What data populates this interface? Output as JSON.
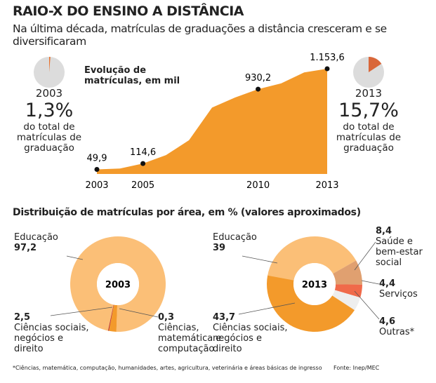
{
  "title": "RAIO-X DO ENSINO A DISTÂNCIA",
  "subtitle": "Na última década, matrículas de graduações a distância cresceram e se diversificaram",
  "section_title": "Distribuição de matrículas por área, em % (valores aproximados)",
  "footnote": "*Ciências, matemática, computação, humanidades, artes, agricultura, veterinária e áreas básicas de ingresso",
  "source": "Fonte: Inep/MEC",
  "chart_data": [
    {
      "type": "area",
      "title": "Evolução de matrículas, em mil",
      "color": "#f39a2b",
      "x": [
        2003,
        2004,
        2005,
        2006,
        2007,
        2008,
        2009,
        2010,
        2011,
        2012,
        2013
      ],
      "values": [
        49.9,
        59.6,
        114.6,
        207.2,
        369.8,
        727.9,
        838.1,
        930.2,
        992.9,
        1113.9,
        1153.6
      ],
      "value_labels": [
        "49,9",
        null,
        "114,6",
        null,
        null,
        null,
        null,
        "930,2",
        null,
        null,
        "1.153,6"
      ],
      "xlim": [
        2003,
        2013
      ],
      "xticks": [
        2003,
        2005,
        2010,
        2013
      ],
      "ylim": [
        0,
        1200
      ]
    },
    {
      "type": "pie",
      "label": "2003",
      "values": [
        1.3
      ],
      "value_labels": [
        "1,3%"
      ],
      "color": "#e8702a",
      "caption": "do total de matrículas de graduação"
    },
    {
      "type": "pie",
      "label": "2013",
      "values": [
        15.7
      ],
      "value_labels": [
        "15,7%"
      ],
      "color": "#d9673a",
      "caption": "do total de matrículas de graduação"
    },
    {
      "type": "donut",
      "center_label": "2003",
      "categories": [
        "Educação",
        "Ciências sociais, negócios e direito",
        "Ciências, matemática e computação"
      ],
      "values": [
        97.2,
        2.5,
        0.3
      ],
      "value_labels": [
        "97,2",
        "2,5",
        "0,3"
      ],
      "colors": [
        "#fbbf77",
        "#f39a2b",
        "#c0392b"
      ]
    },
    {
      "type": "donut",
      "center_label": "2013",
      "categories": [
        "Educação",
        "Saúde e bem-estar social",
        "Serviços",
        "Outras*",
        "Ciências sociais, negócios e direito"
      ],
      "values": [
        39,
        8.4,
        4.4,
        4.6,
        43.7
      ],
      "value_labels": [
        "39",
        "8,4",
        "4,4",
        "4,6",
        "43,7"
      ],
      "colors": [
        "#fbbf77",
        "#e0a070",
        "#f06a4a",
        "#eeeeee",
        "#f39a2b"
      ]
    }
  ]
}
